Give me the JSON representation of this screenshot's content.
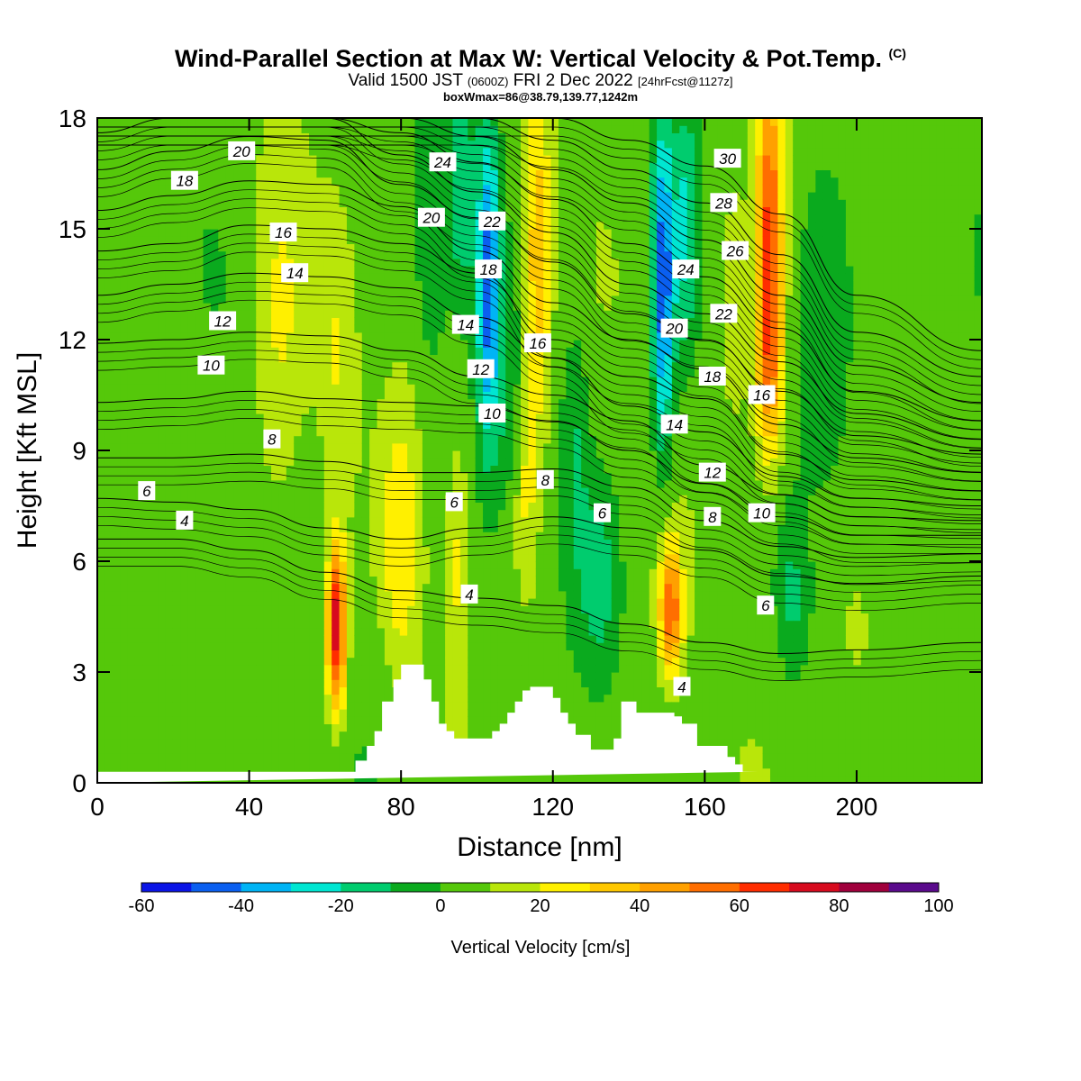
{
  "header": {
    "title": "Wind-Parallel Section at Max W: Vertical Velocity & Pot.Temp.",
    "title_tag": "(C)",
    "valid_main": "Valid 1500 JST",
    "valid_utc": "(0600Z)",
    "valid_date": "FRI 2 Dec 2022",
    "valid_fcst": "[24hrFcst@1127z]",
    "boxwmax": "boxWmax=86@38.79,139.77,1242m"
  },
  "chart_data": {
    "type": "heatmap",
    "title": "Wind-Parallel Section at Max W: Vertical Velocity & Pot.Temp.",
    "xlabel": "Distance [nm]",
    "ylabel": "Height [Kft MSL]",
    "xlim": [
      0,
      233
    ],
    "ylim": [
      0,
      18
    ],
    "xticks": [
      0,
      40,
      80,
      120,
      160,
      200
    ],
    "yticks": [
      0,
      3,
      6,
      9,
      12,
      15,
      18
    ],
    "colorbar": {
      "label": "Vertical Velocity [cm/s]",
      "bounds": [
        -60,
        -50,
        -40,
        -30,
        -20,
        -10,
        0,
        10,
        20,
        30,
        40,
        50,
        60,
        70,
        80,
        90,
        100
      ],
      "tick_labels": [
        "-60",
        "-40",
        "-20",
        "0",
        "20",
        "40",
        "60",
        "80",
        "100"
      ],
      "colors": [
        "#0a14e6",
        "#0a5ff0",
        "#00b4f5",
        "#00e6d2",
        "#00cc6e",
        "#0aaa1e",
        "#55c80a",
        "#b9e60a",
        "#fff000",
        "#ffc800",
        "#ffa000",
        "#ff6e00",
        "#ff2d00",
        "#d70a1e",
        "#a0003c",
        "#5a0a8c"
      ]
    },
    "terrain": {
      "x": [
        0,
        68,
        68,
        71,
        71,
        73,
        73,
        75,
        75,
        78,
        78,
        80,
        80,
        86,
        86,
        88,
        88,
        90,
        90,
        92,
        92,
        94,
        94,
        104,
        104,
        106,
        106,
        108,
        108,
        110,
        110,
        112,
        112,
        114,
        114,
        120,
        120,
        122,
        122,
        124,
        124,
        126,
        126,
        130,
        130,
        136,
        136,
        138,
        138,
        142,
        142,
        152,
        152,
        154,
        154,
        158,
        158,
        166,
        166,
        168,
        168,
        170,
        170,
        174,
        174,
        233
      ],
      "y": [
        0.3,
        0.3,
        0.6,
        0.6,
        1.0,
        1.0,
        1.4,
        1.4,
        2.2,
        2.2,
        2.8,
        2.8,
        3.2,
        3.2,
        2.8,
        2.8,
        2.2,
        2.2,
        1.6,
        1.6,
        1.4,
        1.4,
        1.2,
        1.2,
        1.4,
        1.4,
        1.6,
        1.6,
        1.9,
        1.9,
        2.2,
        2.2,
        2.5,
        2.5,
        2.6,
        2.6,
        2.3,
        2.3,
        1.9,
        1.9,
        1.6,
        1.6,
        1.3,
        1.3,
        0.9,
        0.9,
        1.2,
        1.2,
        2.2,
        2.2,
        1.9,
        1.9,
        1.8,
        1.8,
        1.6,
        1.6,
        1.0,
        1.0,
        0.7,
        0.7,
        0.5,
        0.5,
        0.3,
        0.3
      ]
    },
    "w_features": [
      {
        "x": 63,
        "y": 4.2,
        "sx": 2.5,
        "sy": 2.2,
        "w": 75
      },
      {
        "x": 80,
        "y": 6.5,
        "sx": 5,
        "sy": 3.5,
        "w": 22
      },
      {
        "x": 63,
        "y": 11.5,
        "sx": 5,
        "sy": 3.5,
        "w": 14
      },
      {
        "x": 48,
        "y": 12,
        "sx": 7,
        "sy": 5.5,
        "w": 16
      },
      {
        "x": 103,
        "y": 13.5,
        "sx": 3,
        "sy": 4.5,
        "w": -48
      },
      {
        "x": 108,
        "y": 10.5,
        "sx": 4,
        "sy": 3,
        "w": -10
      },
      {
        "x": 116,
        "y": 14,
        "sx": 3.5,
        "sy": 4.5,
        "w": 34
      },
      {
        "x": 113,
        "y": 8,
        "sx": 3,
        "sy": 3,
        "w": 16
      },
      {
        "x": 149,
        "y": 13.5,
        "sx": 3,
        "sy": 4.5,
        "w": -52
      },
      {
        "x": 155,
        "y": 15,
        "sx": 3,
        "sy": 3.5,
        "w": -25
      },
      {
        "x": 151,
        "y": 4.7,
        "sx": 3,
        "sy": 1.8,
        "w": 52
      },
      {
        "x": 177,
        "y": 15,
        "sx": 3.5,
        "sy": 4.5,
        "w": 58
      },
      {
        "x": 177,
        "y": 11,
        "sx": 4,
        "sy": 2.5,
        "w": 28
      },
      {
        "x": 168,
        "y": 13,
        "sx": 3.5,
        "sy": 3.5,
        "w": 14
      },
      {
        "x": 132,
        "y": 5.5,
        "sx": 5,
        "sy": 2.5,
        "w": -18
      },
      {
        "x": 126,
        "y": 9,
        "sx": 3.5,
        "sy": 3.5,
        "w": -14
      },
      {
        "x": 88,
        "y": 15,
        "sx": 4,
        "sy": 4,
        "w": -14
      },
      {
        "x": 96,
        "y": 16,
        "sx": 3.5,
        "sy": 3,
        "w": -22
      },
      {
        "x": 183,
        "y": 5,
        "sx": 4,
        "sy": 2,
        "w": -16
      },
      {
        "x": 192,
        "y": 13,
        "sx": 7,
        "sy": 5,
        "w": -12
      },
      {
        "x": 216,
        "y": 10,
        "sx": 12,
        "sy": 7,
        "w": -4
      },
      {
        "x": 25,
        "y": 3,
        "sx": 18,
        "sy": 2.5,
        "w": -4
      },
      {
        "x": 95,
        "y": 6,
        "sx": 3,
        "sy": 3,
        "w": 16
      },
      {
        "x": 200,
        "y": 4,
        "sx": 5,
        "sy": 2,
        "w": 10
      }
    ],
    "isentropes": {
      "x": [
        0,
        20,
        40,
        60,
        80,
        100,
        120,
        140,
        160,
        180,
        200,
        233
      ],
      "lines": [
        {
          "label": "4",
          "y": [
            6.6,
            6.6,
            6.3,
            5.7,
            5.2,
            5.0,
            4.8,
            4.3,
            3.8,
            3.5,
            3.6,
            3.8
          ]
        },
        {
          "label": "6",
          "y": [
            7.7,
            7.6,
            7.4,
            6.9,
            6.6,
            6.9,
            7.2,
            6.9,
            6.3,
            5.6,
            5.4,
            5.6
          ]
        },
        {
          "label": "8",
          "y": [
            8.8,
            8.8,
            8.9,
            8.7,
            8.4,
            8.4,
            8.5,
            8.0,
            7.1,
            6.4,
            6.1,
            6.2
          ]
        },
        {
          "label": "10",
          "y": [
            10.3,
            10.4,
            10.6,
            10.4,
            10.3,
            10.2,
            9.8,
            9.0,
            8.1,
            7.2,
            6.7,
            6.7
          ]
        },
        {
          "label": "12",
          "y": [
            11.9,
            12.0,
            12.2,
            12.1,
            11.7,
            11.0,
            10.5,
            9.8,
            8.6,
            7.8,
            7.2,
            7.1
          ]
        },
        {
          "label": "14",
          "y": [
            13.2,
            13.5,
            13.8,
            13.7,
            13.4,
            12.6,
            11.5,
            10.2,
            9.5,
            8.3,
            7.7,
            7.5
          ]
        },
        {
          "label": "16",
          "y": [
            14.4,
            14.6,
            15.1,
            15.0,
            14.6,
            13.8,
            12.0,
            11.0,
            10.4,
            8.9,
            8.2,
            7.9
          ]
        },
        {
          "label": "18",
          "y": [
            15.5,
            15.9,
            16.3,
            16.2,
            15.6,
            14.4,
            13.0,
            12.0,
            11.2,
            9.7,
            8.8,
            8.4
          ]
        },
        {
          "label": "20",
          "y": [
            16.6,
            17.1,
            17.5,
            17.4,
            16.2,
            15.3,
            14.1,
            12.7,
            12.0,
            10.6,
            9.4,
            8.9
          ]
        },
        {
          "label": "22",
          "y": [
            17.6,
            18,
            18,
            18,
            17.0,
            16.0,
            14.9,
            13.5,
            12.7,
            11.4,
            10.0,
            9.3
          ]
        },
        {
          "label": "24",
          "y": [
            18,
            18,
            18,
            18,
            17.6,
            16.8,
            15.8,
            14.6,
            13.7,
            12.3,
            10.6,
            9.8
          ]
        },
        {
          "label": "26",
          "y": [
            18,
            18,
            18,
            18,
            18,
            17.5,
            16.6,
            15.7,
            14.7,
            13.2,
            11.3,
            10.3
          ]
        },
        {
          "label": "28",
          "y": [
            18,
            18,
            18,
            18,
            18,
            18,
            17.4,
            16.6,
            15.7,
            14.3,
            12.2,
            11.0
          ]
        },
        {
          "label": "30",
          "y": [
            18,
            18,
            18,
            18,
            18,
            18,
            18,
            17.4,
            16.7,
            15.4,
            13.2,
            11.7
          ]
        }
      ],
      "labels": [
        {
          "text": "20",
          "x": 38,
          "y": 17.1
        },
        {
          "text": "18",
          "x": 23,
          "y": 16.3
        },
        {
          "text": "16",
          "x": 49,
          "y": 14.9
        },
        {
          "text": "14",
          "x": 52,
          "y": 13.8
        },
        {
          "text": "12",
          "x": 33,
          "y": 12.5
        },
        {
          "text": "10",
          "x": 30,
          "y": 11.3
        },
        {
          "text": "8",
          "x": 46,
          "y": 9.3
        },
        {
          "text": "6",
          "x": 13,
          "y": 7.9
        },
        {
          "text": "4",
          "x": 23,
          "y": 7.1
        },
        {
          "text": "24",
          "x": 91,
          "y": 16.8
        },
        {
          "text": "20",
          "x": 88,
          "y": 15.3
        },
        {
          "text": "22",
          "x": 104,
          "y": 15.2
        },
        {
          "text": "18",
          "x": 103,
          "y": 13.9
        },
        {
          "text": "14",
          "x": 97,
          "y": 12.4
        },
        {
          "text": "12",
          "x": 101,
          "y": 11.2
        },
        {
          "text": "10",
          "x": 104,
          "y": 10.0
        },
        {
          "text": "16",
          "x": 116,
          "y": 11.9
        },
        {
          "text": "8",
          "x": 118,
          "y": 8.2
        },
        {
          "text": "6",
          "x": 94,
          "y": 7.6
        },
        {
          "text": "6",
          "x": 133,
          "y": 7.3
        },
        {
          "text": "4",
          "x": 98,
          "y": 5.1
        },
        {
          "text": "30",
          "x": 166,
          "y": 16.9
        },
        {
          "text": "28",
          "x": 165,
          "y": 15.7
        },
        {
          "text": "26",
          "x": 168,
          "y": 14.4
        },
        {
          "text": "24",
          "x": 155,
          "y": 13.9
        },
        {
          "text": "22",
          "x": 165,
          "y": 12.7
        },
        {
          "text": "20",
          "x": 152,
          "y": 12.3
        },
        {
          "text": "18",
          "x": 162,
          "y": 11.0
        },
        {
          "text": "16",
          "x": 175,
          "y": 10.5
        },
        {
          "text": "14",
          "x": 152,
          "y": 9.7
        },
        {
          "text": "12",
          "x": 162,
          "y": 8.4
        },
        {
          "text": "10",
          "x": 175,
          "y": 7.3
        },
        {
          "text": "8",
          "x": 162,
          "y": 7.2
        },
        {
          "text": "6",
          "x": 176,
          "y": 4.8
        },
        {
          "text": "4",
          "x": 154,
          "y": 2.6
        }
      ]
    },
    "grid": false
  }
}
